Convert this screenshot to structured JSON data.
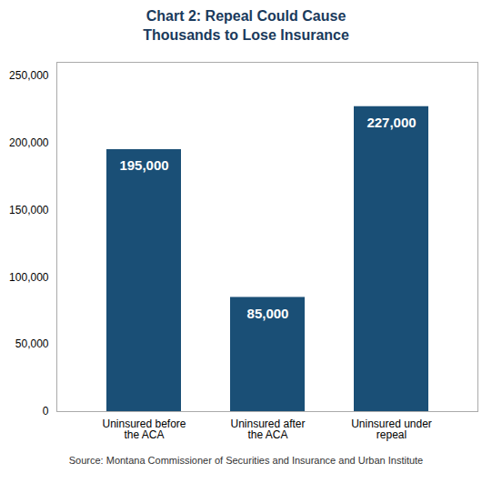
{
  "chart_data": {
    "type": "bar",
    "title": "Chart 2: Repeal Could Cause\nThousands to Lose Insurance",
    "categories": [
      "Uninsured before\nthe ACA",
      "Uninsured after\nthe ACA",
      "Uninsured under\nrepeal"
    ],
    "values": [
      195000,
      85000,
      227000
    ],
    "value_labels": [
      "195,000",
      "85,000",
      "227,000"
    ],
    "data_labels": true,
    "color": "#1a4f76",
    "ylim": [
      0,
      260000
    ],
    "yticks": [
      0,
      {
        "value": 50000,
        "label": "50,000"
      },
      {
        "value": 100000,
        "label": "100,000"
      },
      {
        "value": 150000,
        "label": "150,000"
      },
      {
        "value": 200000,
        "label": "200,000"
      },
      {
        "value": 250000,
        "label": "250,000"
      }
    ],
    "grid": false,
    "source": "Source: Montana Commissioner of Securities and Insurance and Urban Institute"
  }
}
